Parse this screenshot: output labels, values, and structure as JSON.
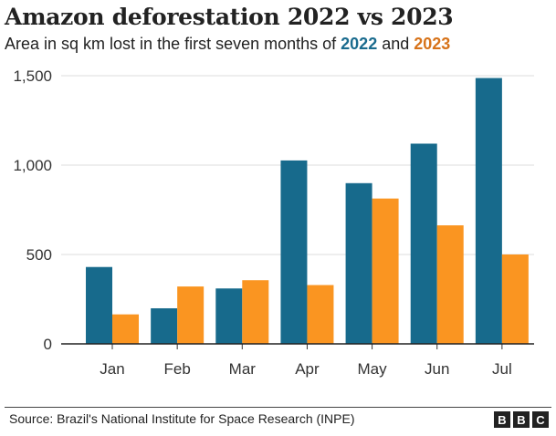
{
  "chart_data": {
    "type": "bar",
    "title": "Amazon deforestation 2022 vs 2023",
    "subtitle_prefix": "Area in sq km lost in the first seven months of ",
    "subtitle_and": " and ",
    "categories": [
      "Jan",
      "Feb",
      "Mar",
      "Apr",
      "May",
      "Jun",
      "Jul"
    ],
    "series": [
      {
        "name": "2022",
        "color": "#176a8c",
        "values": [
          430,
          199,
          310,
          1026,
          899,
          1120,
          1487
        ]
      },
      {
        "name": "2023",
        "color": "#fa9521",
        "values": [
          165,
          321,
          356,
          329,
          813,
          663,
          500
        ]
      }
    ],
    "yticks": [
      0,
      500,
      1000,
      1500
    ],
    "ytick_labels": [
      "0",
      "500",
      "1,000",
      "1,500"
    ],
    "ylim": [
      0,
      1500
    ],
    "grid": true,
    "xlabel": "",
    "ylabel": ""
  },
  "footer": {
    "source": "Source: Brazil's National Institute for Space Research (INPE)",
    "logo": [
      "B",
      "B",
      "C"
    ]
  }
}
